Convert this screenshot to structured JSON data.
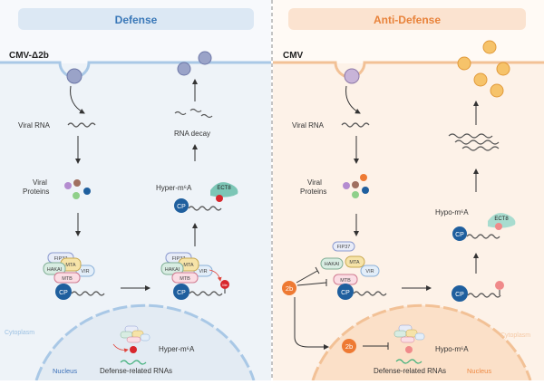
{
  "colors": {
    "defense_accent": "#3a78b8",
    "anti_defense_accent": "#e8823a",
    "cp": "#1f5f9e",
    "me": "#d8262c",
    "ect8": "#7cc6b6",
    "two_b": "#ee7a33"
  },
  "left": {
    "header": "Defense",
    "strain": "CMV-Δ2b",
    "viral_rna": "Viral RNA",
    "viral_proteins_1": "Viral",
    "viral_proteins_2": "Proteins",
    "rna_decay": "RNA decay",
    "hyper_m6a": "Hyper-m⁶A",
    "nuclear_m6a": "Hyper-m⁶A",
    "defense_rnas": "Defense-related RNAs",
    "cytoplasm": "Cytoplasm",
    "nucleus": "Nucleus"
  },
  "right": {
    "header": "Anti-Defense",
    "strain": "CMV",
    "viral_rna": "Viral RNA",
    "viral_proteins_1": "Viral",
    "viral_proteins_2": "Proteins",
    "hypo_m6a": "Hypo-m⁶A",
    "nuclear_m6a": "Hypo-m⁶A",
    "defense_rnas": "Defense-related RNAs",
    "cytoplasm": "Cytoplasm",
    "nucleus": "Nucleus",
    "two_b": "2b"
  },
  "complex": {
    "fip37": "FIP37",
    "hakai": "HAKAI",
    "mta": "MTA",
    "vir": "VIR",
    "mtb": "MTB",
    "cp": "CP",
    "me": "Me",
    "ect8": "ECT8"
  }
}
